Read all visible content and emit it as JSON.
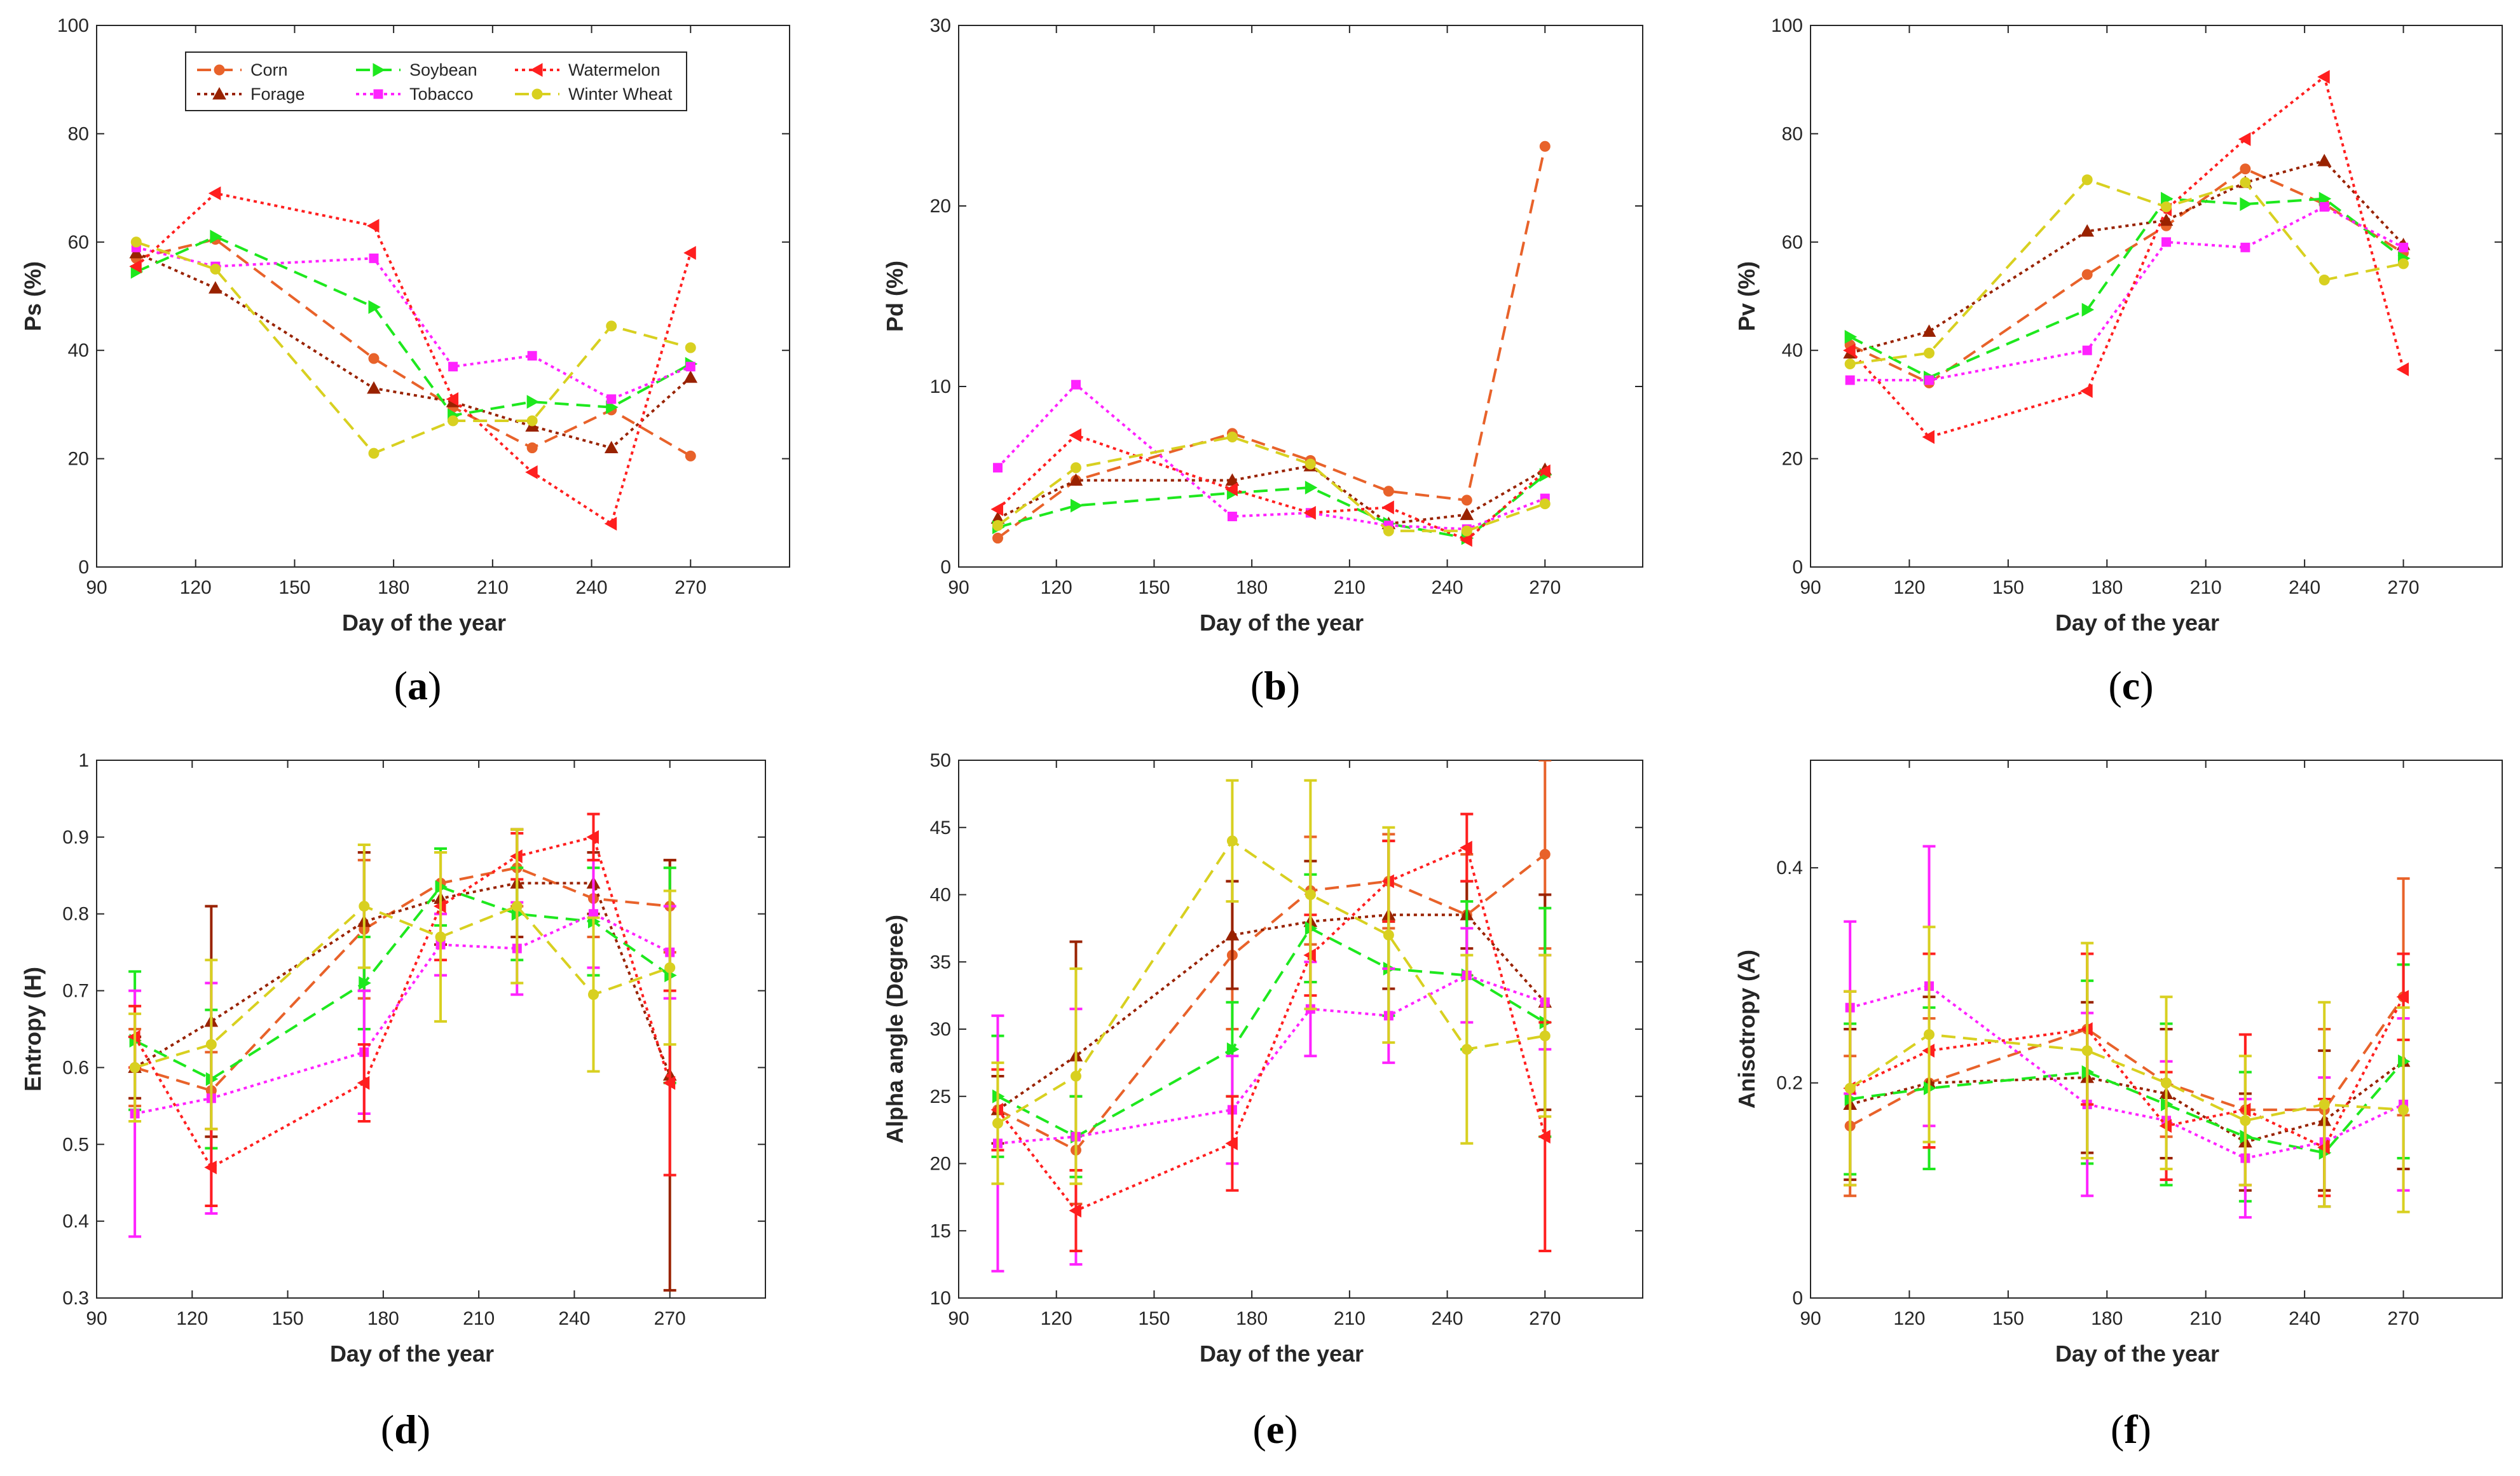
{
  "figure": {
    "panel_labels": [
      "a",
      "b",
      "c",
      "d",
      "e",
      "f"
    ],
    "legend": {
      "panel": "a",
      "entries": [
        "Corn",
        "Forage",
        "Soybean",
        "Tobacco",
        "Watermelon",
        "Winter Wheat"
      ]
    },
    "series_styles": {
      "Corn": {
        "color": "#e8622a",
        "dash": "22,12",
        "marker": "circle"
      },
      "Forage": {
        "color": "#992200",
        "dash": "5,6",
        "marker": "triangle-up"
      },
      "Soybean": {
        "color": "#1ee81e",
        "dash": "22,12",
        "marker": "triangle-right"
      },
      "Tobacco": {
        "color": "#ff22ff",
        "dash": "5,6",
        "marker": "square"
      },
      "Watermelon": {
        "color": "#ff1f1f",
        "dash": "5,6",
        "marker": "triangle-left"
      },
      "Winter Wheat": {
        "color": "#d8d020",
        "dash": "22,12",
        "marker": "circle"
      }
    }
  },
  "chart_data": [
    {
      "id": "a",
      "type": "line",
      "title": "",
      "xlabel": "Day of the year",
      "ylabel": "Ps (%)",
      "xlim": [
        90,
        300
      ],
      "ylim": [
        0,
        100
      ],
      "xticks": [
        90,
        120,
        150,
        180,
        210,
        240,
        270
      ],
      "yticks": [
        0,
        20,
        40,
        60,
        80,
        100
      ],
      "x": [
        102,
        126,
        174,
        198,
        222,
        246,
        270
      ],
      "series": [
        {
          "name": "Corn",
          "values": [
            57,
            60.5,
            38.5,
            29.5,
            22,
            29,
            20.5
          ]
        },
        {
          "name": "Forage",
          "values": [
            58,
            51.5,
            33,
            30.5,
            26,
            22,
            35
          ]
        },
        {
          "name": "Soybean",
          "values": [
            54.5,
            61,
            48,
            28,
            30.5,
            29.5,
            37.5
          ]
        },
        {
          "name": "Tobacco",
          "values": [
            59,
            55.5,
            57,
            37,
            39,
            31,
            37
          ]
        },
        {
          "name": "Watermelon",
          "values": [
            55.5,
            69,
            63,
            31,
            17.5,
            8,
            58
          ]
        },
        {
          "name": "Winter Wheat",
          "values": [
            60,
            55,
            21,
            27,
            27,
            44.5,
            40.5
          ]
        }
      ]
    },
    {
      "id": "b",
      "type": "line",
      "title": "",
      "xlabel": "Day of the year",
      "ylabel": "Pd (%)",
      "xlim": [
        90,
        300
      ],
      "ylim": [
        0,
        30
      ],
      "xticks": [
        90,
        120,
        150,
        180,
        210,
        240,
        270
      ],
      "yticks": [
        0,
        10,
        20,
        30
      ],
      "x": [
        102,
        126,
        174,
        198,
        222,
        246,
        270
      ],
      "series": [
        {
          "name": "Corn",
          "values": [
            1.6,
            4.8,
            7.4,
            5.9,
            4.2,
            3.7,
            23.3
          ]
        },
        {
          "name": "Forage",
          "values": [
            2.7,
            4.8,
            4.8,
            5.6,
            2.4,
            2.9,
            5.4
          ]
        },
        {
          "name": "Soybean",
          "values": [
            2.2,
            3.4,
            4.1,
            4.4,
            2.4,
            1.6,
            5.1
          ]
        },
        {
          "name": "Tobacco",
          "values": [
            5.5,
            10.1,
            2.8,
            3.0,
            2.3,
            2.1,
            3.8
          ]
        },
        {
          "name": "Watermelon",
          "values": [
            3.2,
            7.3,
            4.3,
            3.0,
            3.3,
            1.5,
            5.3
          ]
        },
        {
          "name": "Winter Wheat",
          "values": [
            2.3,
            5.5,
            7.2,
            5.7,
            2.0,
            2.0,
            3.5
          ]
        }
      ]
    },
    {
      "id": "c",
      "type": "line",
      "title": "",
      "xlabel": "Day of the year",
      "ylabel": "Pv (%)",
      "xlim": [
        90,
        300
      ],
      "ylim": [
        0,
        100
      ],
      "xticks": [
        90,
        120,
        150,
        180,
        210,
        240,
        270
      ],
      "yticks": [
        0,
        20,
        40,
        60,
        80,
        100
      ],
      "x": [
        102,
        126,
        174,
        198,
        222,
        246,
        270
      ],
      "series": [
        {
          "name": "Corn",
          "values": [
            41,
            34,
            54,
            63,
            73.5,
            67,
            58
          ]
        },
        {
          "name": "Forage",
          "values": [
            39.5,
            43.5,
            62,
            64,
            71,
            75,
            59.5
          ]
        },
        {
          "name": "Soybean",
          "values": [
            42.5,
            35,
            47.5,
            68,
            67,
            68,
            57
          ]
        },
        {
          "name": "Tobacco",
          "values": [
            34.5,
            34.5,
            40,
            60,
            59,
            66.5,
            59
          ]
        },
        {
          "name": "Watermelon",
          "values": [
            40,
            24,
            32.5,
            66,
            79,
            90.5,
            36.5
          ]
        },
        {
          "name": "Winter Wheat",
          "values": [
            37.5,
            39.5,
            71.5,
            66.5,
            71,
            53,
            56
          ]
        }
      ]
    },
    {
      "id": "d",
      "type": "line",
      "title": "",
      "xlabel": "Day of the year",
      "ylabel": "Entropy (H)",
      "xlim": [
        90,
        300
      ],
      "ylim": [
        0.3,
        1
      ],
      "xticks": [
        90,
        120,
        150,
        180,
        210,
        240,
        270
      ],
      "yticks": [
        0.3,
        0.4,
        0.5,
        0.6,
        0.7,
        0.8,
        0.9,
        1
      ],
      "x": [
        102,
        126,
        174,
        198,
        222,
        246,
        270
      ],
      "series": [
        {
          "name": "Corn",
          "values": [
            0.6,
            0.57,
            0.78,
            0.84,
            0.86,
            0.82,
            0.81
          ],
          "errors": [
            0.05,
            0.05,
            0.09,
            0.04,
            0.05,
            0.05,
            0.06
          ]
        },
        {
          "name": "Forage",
          "values": [
            0.6,
            0.66,
            0.79,
            0.82,
            0.84,
            0.84,
            0.59
          ],
          "errors": [
            0.04,
            0.15,
            0.09,
            0.06,
            0.07,
            0.04,
            0.28
          ]
        },
        {
          "name": "Soybean",
          "values": [
            0.635,
            0.585,
            0.71,
            0.835,
            0.8,
            0.79,
            0.72
          ],
          "errors": [
            0.09,
            0.09,
            0.06,
            0.05,
            0.06,
            0.07,
            0.14
          ]
        },
        {
          "name": "Tobacco",
          "values": [
            0.54,
            0.56,
            0.62,
            0.76,
            0.755,
            0.8,
            0.75
          ],
          "errors": [
            0.16,
            0.15,
            0.08,
            0.04,
            0.06,
            0.07,
            0.06
          ]
        },
        {
          "name": "Watermelon",
          "values": [
            0.64,
            0.47,
            0.58,
            0.81,
            0.875,
            0.9,
            0.58
          ],
          "errors": [
            0.04,
            0.05,
            0.05,
            0.07,
            0.03,
            0.03,
            0.12
          ]
        },
        {
          "name": "Winter Wheat",
          "values": [
            0.6,
            0.63,
            0.81,
            0.77,
            0.81,
            0.695,
            0.73
          ],
          "errors": [
            0.07,
            0.11,
            0.08,
            0.11,
            0.1,
            0.1,
            0.1
          ]
        }
      ]
    },
    {
      "id": "e",
      "type": "line",
      "title": "",
      "xlabel": "Day of the year",
      "ylabel": "Alpha angle (Degree)",
      "xlim": [
        90,
        300
      ],
      "ylim": [
        10,
        50
      ],
      "xticks": [
        90,
        120,
        150,
        180,
        210,
        240,
        270
      ],
      "yticks": [
        10,
        15,
        20,
        25,
        30,
        35,
        40,
        45,
        50
      ],
      "x": [
        102,
        126,
        174,
        198,
        222,
        246,
        270
      ],
      "series": [
        {
          "name": "Corn",
          "values": [
            24,
            21,
            35.5,
            40.3,
            41,
            38.5,
            43
          ],
          "errors": [
            3,
            4,
            5.5,
            4,
            3.5,
            4.5,
            7
          ]
        },
        {
          "name": "Forage",
          "values": [
            24,
            28,
            37,
            38,
            38.5,
            38.5,
            32
          ],
          "errors": [
            2.5,
            8.5,
            4,
            4.5,
            5.5,
            2.5,
            8
          ]
        },
        {
          "name": "Soybean",
          "values": [
            25,
            22,
            28.5,
            37.5,
            34.5,
            34,
            30.5
          ],
          "errors": [
            4.5,
            3,
            3.5,
            4,
            3.5,
            5.5,
            8.5
          ]
        },
        {
          "name": "Tobacco",
          "values": [
            21.5,
            22,
            24,
            31.5,
            31,
            34,
            32
          ],
          "errors": [
            9.5,
            9.5,
            4,
            3.5,
            3.5,
            3.5,
            3.5
          ]
        },
        {
          "name": "Watermelon",
          "values": [
            24,
            16.5,
            21.5,
            35.5,
            41,
            43.5,
            22
          ],
          "errors": [
            3,
            3,
            3.5,
            3,
            3,
            2.5,
            8.5
          ]
        },
        {
          "name": "Winter Wheat",
          "values": [
            23,
            26.5,
            44,
            40,
            37,
            28.5,
            29.5
          ],
          "errors": [
            4.5,
            8,
            4.5,
            8.5,
            8,
            7,
            6
          ]
        }
      ]
    },
    {
      "id": "f",
      "type": "line",
      "title": "",
      "xlabel": "Day of the year",
      "ylabel": "Anisotropy (A)",
      "xlim": [
        90,
        300
      ],
      "ylim": [
        0,
        0.5
      ],
      "xticks": [
        90,
        120,
        150,
        180,
        210,
        240,
        270
      ],
      "yticks": [
        0,
        0.2,
        0.4
      ],
      "x": [
        102,
        126,
        174,
        198,
        222,
        246,
        270
      ],
      "series": [
        {
          "name": "Corn",
          "values": [
            0.16,
            0.2,
            0.25,
            0.2,
            0.175,
            0.175,
            0.28
          ],
          "errors": [
            0.065,
            0.06,
            0.07,
            0.05,
            0.07,
            0.075,
            0.11
          ]
        },
        {
          "name": "Forage",
          "values": [
            0.18,
            0.2,
            0.205,
            0.19,
            0.145,
            0.165,
            0.22
          ],
          "errors": [
            0.07,
            0.08,
            0.07,
            0.06,
            0.045,
            0.065,
            0.1
          ]
        },
        {
          "name": "Soybean",
          "values": [
            0.185,
            0.195,
            0.21,
            0.18,
            0.15,
            0.135,
            0.22
          ],
          "errors": [
            0.07,
            0.075,
            0.085,
            0.075,
            0.06,
            0.05,
            0.09
          ]
        },
        {
          "name": "Tobacco",
          "values": [
            0.27,
            0.29,
            0.18,
            0.165,
            0.13,
            0.145,
            0.18
          ],
          "errors": [
            0.08,
            0.13,
            0.085,
            0.055,
            0.055,
            0.06,
            0.08
          ]
        },
        {
          "name": "Watermelon",
          "values": [
            0.195,
            0.23,
            0.25,
            0.16,
            0.175,
            0.14,
            0.28
          ],
          "errors": [
            0.09,
            0.09,
            0.07,
            0.05,
            0.07,
            0.045,
            0.04
          ]
        },
        {
          "name": "Winter Wheat",
          "values": [
            0.195,
            0.245,
            0.23,
            0.2,
            0.165,
            0.18,
            0.175
          ],
          "errors": [
            0.09,
            0.1,
            0.1,
            0.08,
            0.06,
            0.095,
            0.095
          ]
        }
      ]
    }
  ]
}
